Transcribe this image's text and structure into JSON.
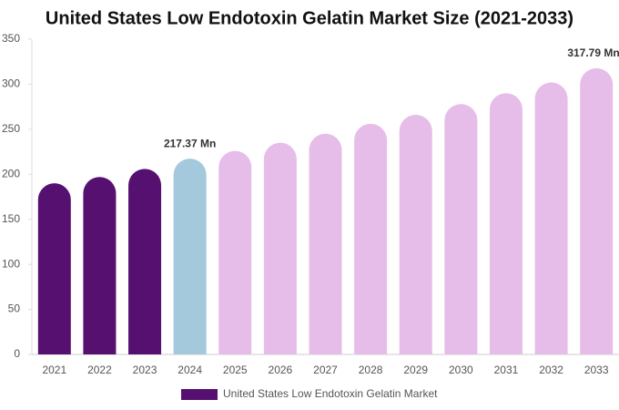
{
  "chart_data": {
    "type": "bar",
    "title": "United States Low Endotoxin Gelatin Market Size (2021-2033)",
    "categories": [
      "2021",
      "2022",
      "2023",
      "2024",
      "2025",
      "2026",
      "2027",
      "2028",
      "2029",
      "2030",
      "2031",
      "2032",
      "2033"
    ],
    "series": [
      {
        "name": "United States Low Endotoxin Gelatin Market",
        "color": "#561070",
        "values": [
          190,
          197,
          206,
          217.37,
          226,
          235,
          245,
          256,
          266,
          278,
          290,
          302,
          317.79
        ],
        "value_labels": [
          null,
          null,
          null,
          "217.37 Mn",
          null,
          null,
          null,
          null,
          null,
          null,
          null,
          null,
          "317.79 Mn"
        ],
        "colors": [
          "#561070",
          "#561070",
          "#561070",
          "#a4c9dd",
          "#e6bde9",
          "#e6bde9",
          "#e6bde9",
          "#e6bde9",
          "#e6bde9",
          "#e6bde9",
          "#e6bde9",
          "#e6bde9",
          "#e6bde9"
        ]
      }
    ],
    "ylim": [
      0,
      350
    ],
    "yticks": [
      0,
      50,
      100,
      150,
      200,
      250,
      300,
      350
    ],
    "grid": false
  }
}
